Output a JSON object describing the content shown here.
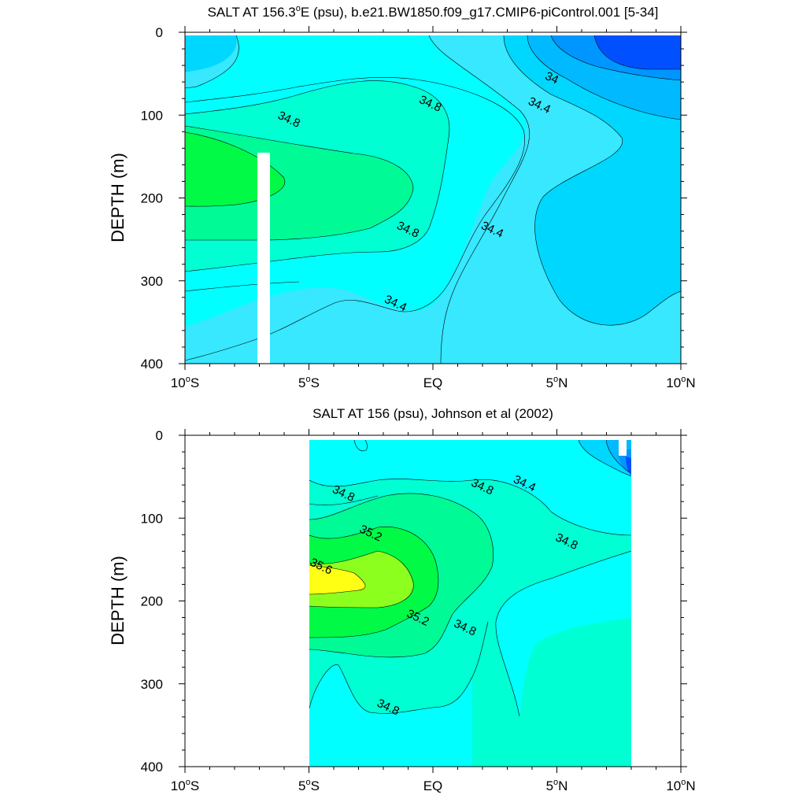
{
  "chart_data": [
    {
      "type": "contour",
      "title": "SALT AT 156.3°E (psu), b.e21.BW1850.f09_g17.CMIP6-piControl.001 [5-34]",
      "title_parts": {
        "pre": "SALT AT 156.3",
        "deg": "o",
        "post": "E (psu), b.e21.BW1850.f09_g17.CMIP6-piControl.001 [5-34]"
      },
      "ylabel": "DEPTH (m)",
      "xlim": [
        -10,
        10
      ],
      "ylim": [
        400,
        0
      ],
      "x_ticks": [
        {
          "value": -10,
          "num": "10",
          "hemi": "S"
        },
        {
          "value": -5,
          "num": "5",
          "hemi": "S"
        },
        {
          "value": 0,
          "num": "EQ",
          "hemi": ""
        },
        {
          "value": 5,
          "num": "5",
          "hemi": "N"
        },
        {
          "value": 10,
          "num": "10",
          "hemi": "N"
        }
      ],
      "y_ticks": [
        "0",
        "100",
        "200",
        "300",
        "400"
      ],
      "contour_labels": [
        {
          "text": "34",
          "x": 4.8,
          "y": 55
        },
        {
          "text": "34.4",
          "x": 4.3,
          "y": 88
        },
        {
          "text": "34.8",
          "x": -0.1,
          "y": 86
        },
        {
          "text": "34.8",
          "x": -5.8,
          "y": 105
        },
        {
          "text": "34.8",
          "x": -1.0,
          "y": 238
        },
        {
          "text": "34.4",
          "x": 2.4,
          "y": 238
        },
        {
          "text": "34.4",
          "x": -1.5,
          "y": 327
        }
      ],
      "data_gap": {
        "x": [
          -3.1,
          -2.6
        ],
        "y": [
          150,
          400
        ]
      }
    },
    {
      "type": "contour",
      "title": "SALT AT 156 (psu), Johnson et al (2002)",
      "ylabel": "DEPTH (m)",
      "xlim": [
        -10,
        10
      ],
      "ylim": [
        400,
        0
      ],
      "data_extent_x": [
        -5,
        8
      ],
      "x_ticks": [
        {
          "value": -10,
          "num": "10",
          "hemi": "S"
        },
        {
          "value": -5,
          "num": "5",
          "hemi": "S"
        },
        {
          "value": 0,
          "num": "EQ",
          "hemi": ""
        },
        {
          "value": 5,
          "num": "5",
          "hemi": "N"
        },
        {
          "value": 10,
          "num": "10",
          "hemi": "N"
        }
      ],
      "y_ticks": [
        "0",
        "100",
        "200",
        "300",
        "400"
      ],
      "contour_labels": [
        {
          "text": "34.4",
          "x": 3.7,
          "y": 58
        },
        {
          "text": "34.8",
          "x": 2.0,
          "y": 62
        },
        {
          "text": "34.8",
          "x": -3.6,
          "y": 70
        },
        {
          "text": "35.2",
          "x": -2.5,
          "y": 118
        },
        {
          "text": "35.6",
          "x": -4.5,
          "y": 158
        },
        {
          "text": "35.2",
          "x": -0.6,
          "y": 220
        },
        {
          "text": "34.8",
          "x": 1.3,
          "y": 232
        },
        {
          "text": "34.8",
          "x": 5.4,
          "y": 128
        },
        {
          "text": "34.8",
          "x": -1.8,
          "y": 328
        }
      ]
    }
  ],
  "colors": {
    "s_33_6": "#0050ff",
    "s_33_8": "#0096ff",
    "s_34_0": "#00b9ff",
    "s_34_2": "#00d7ff",
    "s_34_4": "#37e8ff",
    "s_34_6": "#00ffff",
    "s_34_8": "#00ffd2",
    "s_35_0": "#00fa96",
    "s_35_2": "#00fa46",
    "s_35_4": "#8cff1e",
    "s_35_6": "#ffff14"
  }
}
